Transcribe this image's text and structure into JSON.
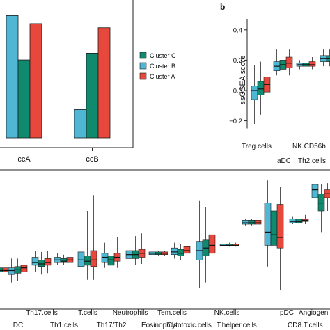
{
  "chart_data": [
    {
      "panel": "",
      "type": "bar",
      "categories": [
        "ccA",
        "ccB"
      ],
      "series": [
        {
          "name": "Cluster C",
          "values": [
            0.58,
            0.63
          ]
        },
        {
          "name": "Cluster B",
          "values": [
            0.91,
            0.21
          ]
        },
        {
          "name": "Cluster A",
          "values": [
            0.85,
            0.82
          ]
        }
      ],
      "colors": [
        "#0f8a6e",
        "#4fb7d3",
        "#e8483b"
      ],
      "legend_position": "right",
      "ylim": [
        0,
        1
      ],
      "grid": false
    },
    {
      "panel": "b",
      "type": "box",
      "ylabel": "ssGSEA score",
      "yticks": [
        "0.4",
        "0.2",
        "0.0",
        "−0.2"
      ],
      "ytick_values": [
        0.4,
        0.2,
        0.0,
        -0.2
      ],
      "ylim": [
        -0.3,
        0.5
      ],
      "categories": [
        "Treg.cells",
        "aDC",
        "Th2.cells",
        "NK.CD56b"
      ],
      "colors": [
        "#4fb7d3",
        "#0f8a6e",
        "#e8483b"
      ],
      "boxes": [
        [
          [
            -0.22,
            -0.06,
            0.0,
            0.03,
            0.17
          ],
          [
            -0.16,
            -0.03,
            0.01,
            0.06,
            0.19
          ],
          [
            -0.12,
            -0.01,
            0.04,
            0.09,
            0.23
          ]
        ],
        [
          [
            0.1,
            0.13,
            0.16,
            0.19,
            0.27
          ],
          [
            0.1,
            0.14,
            0.17,
            0.2,
            0.26
          ],
          [
            0.1,
            0.15,
            0.18,
            0.22,
            0.27
          ]
        ],
        [
          [
            0.14,
            0.16,
            0.17,
            0.18,
            0.2
          ],
          [
            0.14,
            0.16,
            0.17,
            0.18,
            0.21
          ],
          [
            0.14,
            0.16,
            0.17,
            0.19,
            0.22
          ]
        ],
        [
          [
            0.16,
            0.19,
            0.21,
            0.23,
            0.27
          ],
          [
            0.16,
            0.19,
            0.21,
            0.23,
            0.27
          ],
          [
            0.16,
            0.19,
            0.21,
            0.23,
            0.27
          ]
        ]
      ]
    },
    {
      "panel": "",
      "type": "box",
      "categories": [
        "",
        "DC",
        "Th17.cells",
        "Th1.cells",
        "T.cells",
        "Th17/Th2",
        "Neutrophils",
        "Eosinophils",
        "Tem.cells",
        "Cytotoxic.cells",
        "NK.cells",
        "T.helper.cells",
        "pDC",
        "CD8.T.cells",
        "Angiogen"
      ],
      "colors": [
        "#4fb7d3",
        "#0f8a6e",
        "#e8483b"
      ],
      "ylim": [
        0,
        1
      ],
      "boxes": [
        [
          [
            0.2,
            0.24,
            0.25,
            0.27,
            0.3
          ],
          [
            0.2,
            0.24,
            0.25,
            0.27,
            0.3
          ],
          [
            0.2,
            0.24,
            0.25,
            0.27,
            0.3
          ]
        ],
        [
          [
            0.16,
            0.22,
            0.25,
            0.27,
            0.34
          ],
          [
            0.17,
            0.23,
            0.26,
            0.28,
            0.34
          ],
          [
            0.17,
            0.24,
            0.27,
            0.29,
            0.35
          ]
        ],
        [
          [
            0.24,
            0.29,
            0.31,
            0.35,
            0.4
          ],
          [
            0.22,
            0.28,
            0.3,
            0.33,
            0.39
          ],
          [
            0.23,
            0.29,
            0.31,
            0.34,
            0.4
          ]
        ],
        [
          [
            0.29,
            0.31,
            0.33,
            0.35,
            0.38
          ],
          [
            0.29,
            0.31,
            0.32,
            0.34,
            0.37
          ],
          [
            0.29,
            0.31,
            0.33,
            0.35,
            0.38
          ]
        ],
        [
          [
            0.14,
            0.28,
            0.33,
            0.39,
            0.74
          ],
          [
            0.18,
            0.29,
            0.32,
            0.36,
            0.7
          ],
          [
            0.18,
            0.28,
            0.33,
            0.4,
            0.82
          ]
        ],
        [
          [
            0.27,
            0.31,
            0.35,
            0.38,
            0.46
          ],
          [
            0.24,
            0.29,
            0.33,
            0.36,
            0.43
          ],
          [
            0.27,
            0.32,
            0.35,
            0.38,
            0.5
          ]
        ],
        [
          [
            0.29,
            0.34,
            0.37,
            0.4,
            0.53
          ],
          [
            0.29,
            0.34,
            0.37,
            0.4,
            0.51
          ],
          [
            0.3,
            0.35,
            0.38,
            0.41,
            0.53
          ]
        ],
        [
          [
            0.36,
            0.37,
            0.38,
            0.39,
            0.4
          ],
          [
            0.36,
            0.37,
            0.38,
            0.39,
            0.4
          ],
          [
            0.36,
            0.37,
            0.38,
            0.39,
            0.4
          ]
        ],
        [
          [
            0.34,
            0.37,
            0.39,
            0.42,
            0.46
          ],
          [
            0.33,
            0.36,
            0.38,
            0.41,
            0.45
          ],
          [
            0.34,
            0.38,
            0.4,
            0.43,
            0.47
          ]
        ],
        [
          [
            0.12,
            0.33,
            0.4,
            0.47,
            0.78
          ],
          [
            0.16,
            0.36,
            0.42,
            0.48,
            0.73
          ],
          [
            0.18,
            0.38,
            0.44,
            0.52,
            0.88
          ]
        ],
        [
          [
            0.43,
            0.44,
            0.44,
            0.45,
            0.46
          ],
          [
            0.43,
            0.44,
            0.44,
            0.45,
            0.46
          ],
          [
            0.43,
            0.44,
            0.44,
            0.45,
            0.46
          ]
        ],
        [
          [
            0.59,
            0.6,
            0.61,
            0.63,
            0.64
          ],
          [
            0.59,
            0.6,
            0.61,
            0.63,
            0.64
          ],
          [
            0.59,
            0.6,
            0.61,
            0.63,
            0.65
          ]
        ],
        [
          [
            0.28,
            0.44,
            0.54,
            0.76,
            0.93
          ],
          [
            0.19,
            0.44,
            0.52,
            0.7,
            0.88
          ],
          [
            0.1,
            0.42,
            0.5,
            0.75,
            0.88
          ]
        ],
        [
          [
            0.6,
            0.61,
            0.62,
            0.64,
            0.66
          ],
          [
            0.6,
            0.61,
            0.62,
            0.64,
            0.66
          ],
          [
            0.6,
            0.62,
            0.63,
            0.64,
            0.67
          ]
        ],
        [
          [
            0.73,
            0.8,
            0.86,
            0.9,
            0.93
          ],
          [
            0.54,
            0.7,
            0.76,
            0.83,
            0.9
          ],
          [
            0.7,
            0.8,
            0.83,
            0.86,
            0.91
          ]
        ]
      ]
    }
  ]
}
